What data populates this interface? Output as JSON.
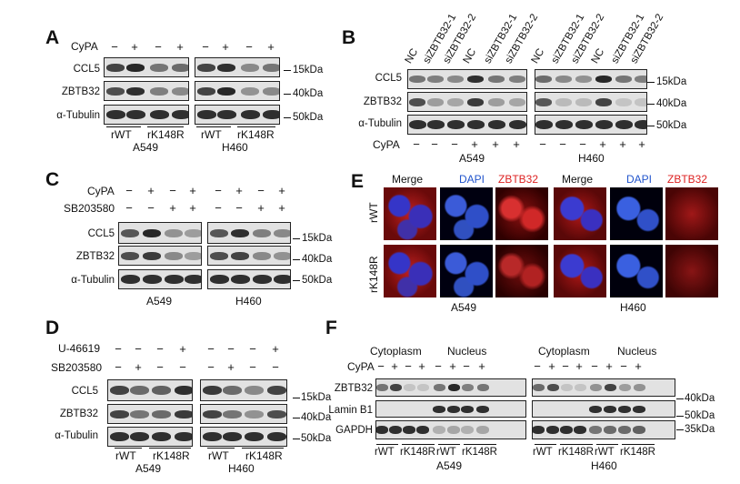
{
  "panels": {
    "A": {
      "label": "A",
      "treatment": {
        "name": "CyPA",
        "signs": [
          "−",
          "+",
          "−",
          "+",
          "−",
          "+",
          "−",
          "+"
        ]
      },
      "rows": [
        "CCL5",
        "ZBTB32",
        "α-Tubulin"
      ],
      "markers": [
        "15kDa",
        "40kDa",
        "50kDa"
      ],
      "groups": [
        "rWT",
        "rK148R",
        "rWT",
        "rK148R"
      ],
      "cells": [
        "A549",
        "H460"
      ]
    },
    "B": {
      "label": "B",
      "lanes": [
        "NC",
        "siZBTB32-1",
        "siZBTB32-2",
        "NC",
        "siZBTB32-1",
        "siZBTB32-2",
        "NC",
        "siZBTB32-1",
        "siZBTB32-2",
        "NC",
        "siZBTB32-1",
        "siZBTB32-2"
      ],
      "rows": [
        "CCL5",
        "ZBTB32",
        "α-Tubulin"
      ],
      "markers": [
        "15kDa",
        "40kDa",
        "50kDa"
      ],
      "treatment": {
        "name": "CyPA",
        "signs": [
          "−",
          "−",
          "−",
          "+",
          "+",
          "+",
          "−",
          "−",
          "−",
          "+",
          "+",
          "+"
        ]
      },
      "cells": [
        "A549",
        "H460"
      ]
    },
    "C": {
      "label": "C",
      "treatments": [
        {
          "name": "CyPA",
          "signs": [
            "−",
            "+",
            "−",
            "+",
            "−",
            "+",
            "−",
            "+"
          ]
        },
        {
          "name": "SB203580",
          "signs": [
            "−",
            "−",
            "+",
            "+",
            "−",
            "−",
            "+",
            "+"
          ]
        }
      ],
      "rows": [
        "CCL5",
        "ZBTB32",
        "α-Tubulin"
      ],
      "markers": [
        "15kDa",
        "40kDa",
        "50kDa"
      ],
      "cells": [
        "A549",
        "H460"
      ]
    },
    "D": {
      "label": "D",
      "treatments": [
        {
          "name": "U-46619",
          "signs": [
            "−",
            "−",
            "−",
            "+",
            "−",
            "−",
            "−",
            "+"
          ]
        },
        {
          "name": "SB203580",
          "signs": [
            "−",
            "+",
            "−",
            "−",
            "−",
            "+",
            "−",
            "−"
          ]
        }
      ],
      "rows": [
        "CCL5",
        "ZBTB32",
        "α-Tubulin"
      ],
      "markers": [
        "15kDa",
        "40kDa",
        "50kDa"
      ],
      "groups": [
        "rWT",
        "rK148R",
        "rWT",
        "rK148R"
      ],
      "cells": [
        "A549",
        "H460"
      ]
    },
    "E": {
      "label": "E",
      "columns": [
        "Merge",
        "DAPI",
        "ZBTB32",
        "Merge",
        "DAPI",
        "ZBTB32"
      ],
      "column_colors": [
        "#111111",
        "#2255cc",
        "#dd2222",
        "#111111",
        "#2255cc",
        "#dd2222"
      ],
      "rows": [
        "rWT",
        "rK148R"
      ],
      "cells": [
        "A549",
        "H460"
      ]
    },
    "F": {
      "label": "F",
      "fractions": [
        "Cytoplasm",
        "Nucleus",
        "Cytoplasm",
        "Nucleus"
      ],
      "treatment": {
        "name": "CyPA",
        "signs": [
          "−",
          "+",
          "−",
          "+",
          "−",
          "+",
          "−",
          "+",
          "−",
          "+",
          "−",
          "+",
          "−",
          "+",
          "−",
          "+"
        ]
      },
      "rows": [
        "ZBTB32",
        "Lamin B1",
        "GAPDH"
      ],
      "markers": [
        "40kDa",
        "50kDa",
        "35kDa"
      ],
      "groups": [
        "rWT",
        "rK148R",
        "rWT",
        "rK148R",
        "rWT",
        "rK148R",
        "rWT",
        "rK148R"
      ],
      "cells": [
        "A549",
        "H460"
      ]
    }
  }
}
